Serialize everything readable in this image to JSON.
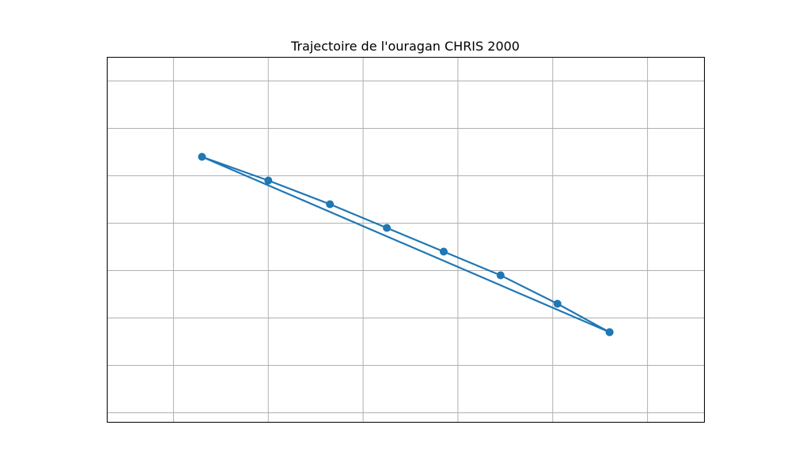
{
  "chart_data": {
    "type": "line",
    "title": "Trajectoire de l'ouragan CHRIS 2000",
    "xlabel": "",
    "ylabel": "",
    "xlim": [
      -64.7,
      -58.4
    ],
    "ylim": [
      12.4,
      20.1
    ],
    "x_gridlines": [
      -64.0,
      -63.0,
      -62.0,
      -61.0,
      -60.0,
      -59.0
    ],
    "y_gridlines": [
      12.6,
      13.6,
      14.6,
      15.6,
      16.6,
      17.6,
      18.6,
      19.6
    ],
    "grid": true,
    "legend": null,
    "series": [
      {
        "name": "CHRIS 2000",
        "color": "#1f77b4",
        "marker": "o",
        "points": [
          {
            "lon": -59.4,
            "lat": 14.3
          },
          {
            "lon": -59.95,
            "lat": 14.9
          },
          {
            "lon": -60.55,
            "lat": 15.5
          },
          {
            "lon": -61.15,
            "lat": 16.0
          },
          {
            "lon": -61.75,
            "lat": 16.5
          },
          {
            "lon": -62.35,
            "lat": 17.0
          },
          {
            "lon": -63.0,
            "lat": 17.5
          },
          {
            "lon": -63.7,
            "lat": 18.0
          },
          {
            "lon": -59.4,
            "lat": 14.3
          }
        ]
      }
    ]
  }
}
